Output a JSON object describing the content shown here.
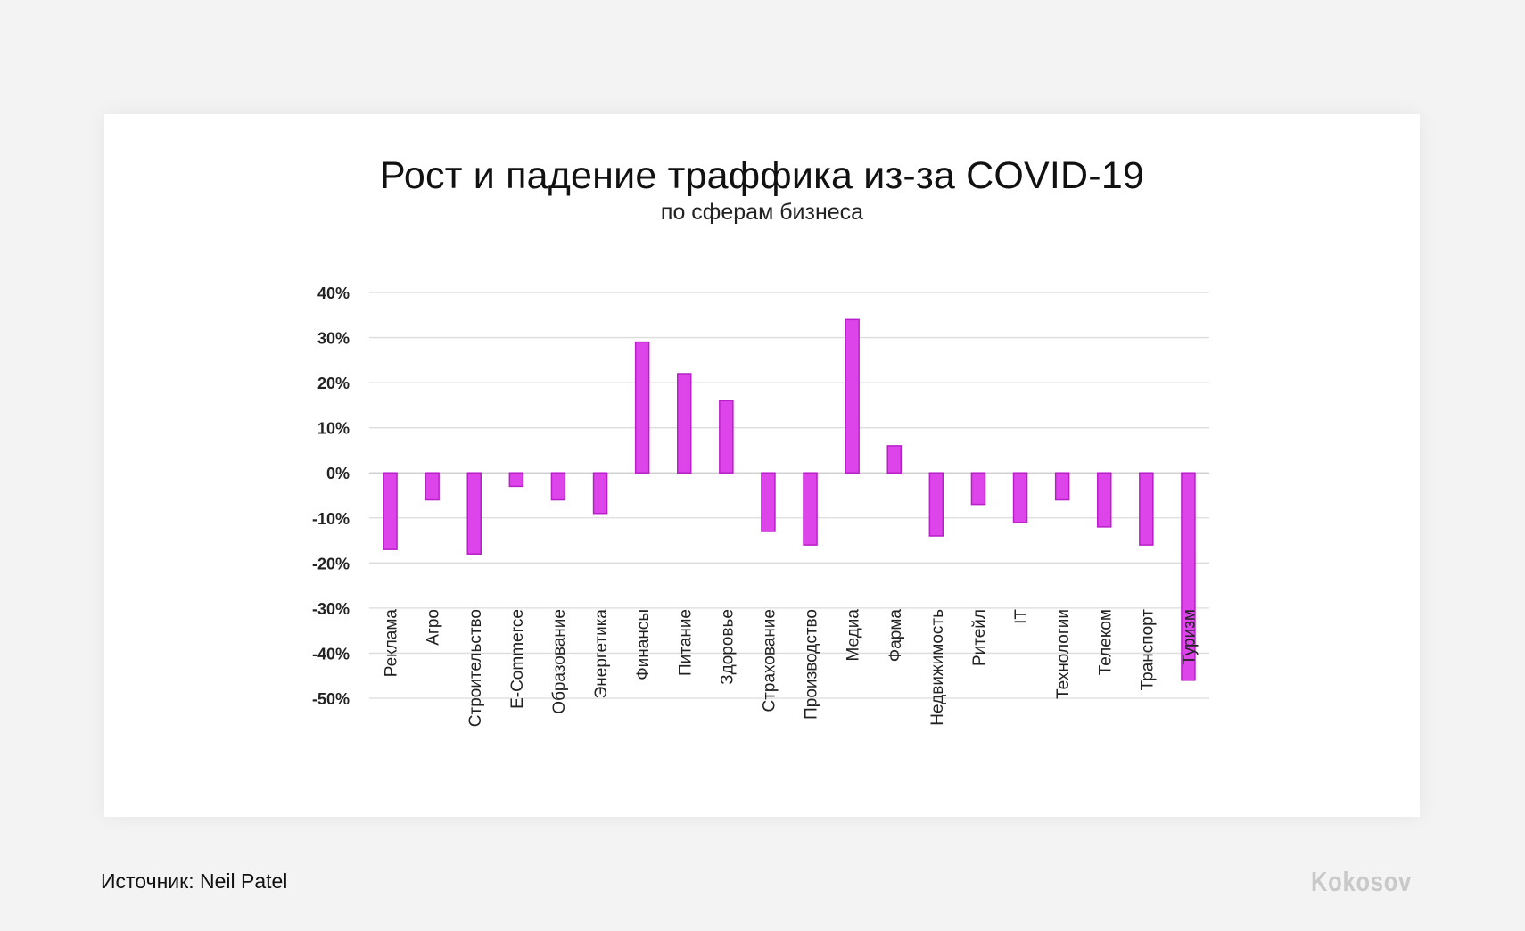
{
  "chart_data": {
    "type": "bar",
    "title": "Рост и падение траффика из-за COVID-19",
    "subtitle": "по сферам бизнеса",
    "categories": [
      "Реклама",
      "Агро",
      "Строительство",
      "E-Commerce",
      "Образование",
      "Энергетика",
      "Финансы",
      "Питание",
      "Здоровье",
      "Страхование",
      "Производство",
      "Медиа",
      "Фарма",
      "Недвижимость",
      "Ритейл",
      "IT",
      "Технологии",
      "Телеком",
      "Транспорт",
      "Туризм"
    ],
    "values": [
      -17,
      -6,
      -18,
      -3,
      -6,
      -9,
      29,
      22,
      16,
      -13,
      -16,
      34,
      6,
      -14,
      -7,
      -11,
      -6,
      -12,
      -16,
      -46
    ],
    "yticks": [
      "40%",
      "30%",
      "20%",
      "10%",
      "0%",
      "-10%",
      "-20%",
      "-30%",
      "-40%",
      "-50%"
    ],
    "ylim": [
      -50,
      40
    ],
    "xlabel": "",
    "ylabel": "",
    "bar_color": "#dd45ea",
    "bar_border": "#b81fc8",
    "grid": true
  },
  "footer": {
    "source": "Источник: Neil Patel",
    "logo": "Kokosov"
  }
}
